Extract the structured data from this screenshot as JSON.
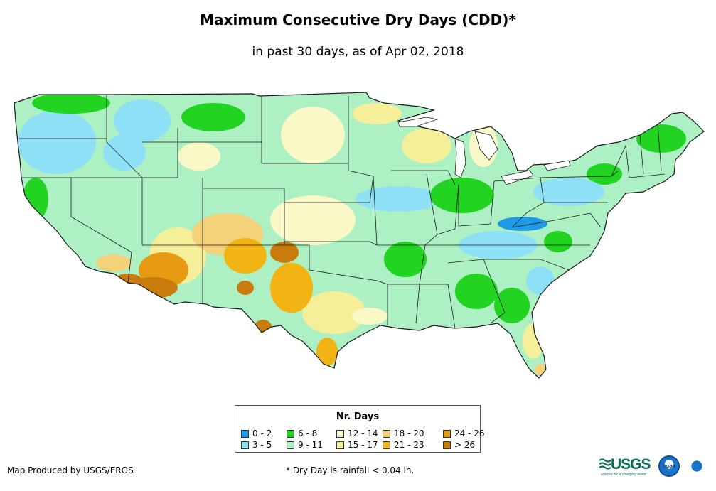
{
  "map": {
    "title": "Maximum Consecutive Dry Days (CDD)*",
    "subtitle": "in past 30 days, as of Apr 02, 2018",
    "region": "Contiguous United States"
  },
  "legend": {
    "title": "Nr. Days",
    "classes": [
      {
        "label": "0 - 2",
        "color": "#1f9be6"
      },
      {
        "label": "3 - 5",
        "color": "#8ee0f6"
      },
      {
        "label": "6 - 8",
        "color": "#22d322"
      },
      {
        "label": "9 - 11",
        "color": "#adf0c4"
      },
      {
        "label": "12 - 14",
        "color": "#fbf8c8"
      },
      {
        "label": "15 - 17",
        "color": "#f5ef9a"
      },
      {
        "label": "18 - 20",
        "color": "#f4d27a"
      },
      {
        "label": "21 - 23",
        "color": "#f1b414"
      },
      {
        "label": "24 - 26",
        "color": "#e79b12"
      },
      {
        "label": "> 26",
        "color": "#c97c0c"
      }
    ]
  },
  "footer": {
    "credit": "Map Produced by USGS/EROS",
    "note": "* Dry Day is rainfall < 0.04 in."
  },
  "logos": {
    "usgs": "USGS",
    "usgs_tagline": "science for a changing world",
    "noaa": "noaa",
    "nws": "weather-service-seal-icon"
  },
  "colors": {
    "border": "#1a1a1a",
    "ocean": "#ffffff"
  }
}
